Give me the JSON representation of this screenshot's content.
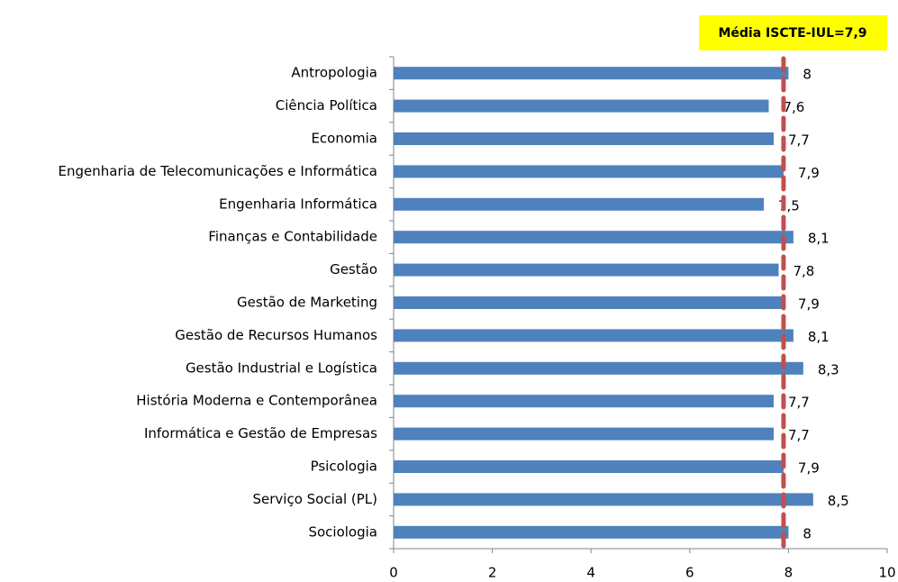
{
  "chart_data": {
    "type": "barh",
    "categories": [
      "Antropologia",
      "Ciência Política",
      "Economia",
      "Engenharia de Telecomunicações e Informática",
      "Engenharia Informática",
      "Finanças e Contabilidade",
      "Gestão",
      "Gestão de Marketing",
      "Gestão de Recursos Humanos",
      "Gestão Industrial e Logística",
      "História Moderna e Contemporânea",
      "Informática e Gestão de Empresas",
      "Psicologia",
      "Serviço Social (PL)",
      "Sociologia"
    ],
    "values": [
      8,
      7.6,
      7.7,
      7.9,
      7.5,
      8.1,
      7.8,
      7.9,
      8.1,
      8.3,
      7.7,
      7.7,
      7.9,
      8.5,
      8
    ],
    "value_labels": [
      "8",
      "7,6",
      "7,7",
      "7,9",
      "7,5",
      "8,1",
      "7,8",
      "7,9",
      "8,1",
      "8,3",
      "7,7",
      "7,7",
      "7,9",
      "8,5",
      "8"
    ],
    "color": "#4f81bd",
    "xlim": [
      0,
      10
    ],
    "xticks": [
      0,
      2,
      4,
      6,
      8,
      10
    ],
    "reference_line": {
      "value": 7.9,
      "label": "Média ISCTE-IUL=7,9",
      "color": "#c0504d",
      "label_background": "#ffff00"
    }
  }
}
